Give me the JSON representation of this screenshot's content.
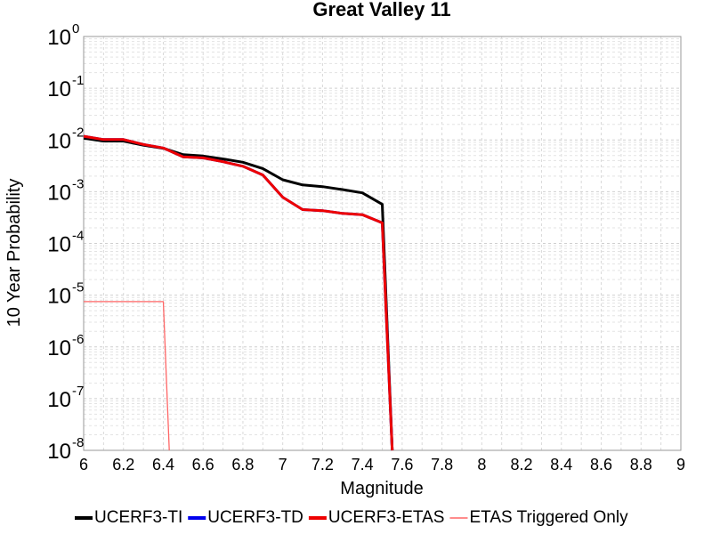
{
  "chart_data": {
    "type": "line",
    "title": "Great Valley 11",
    "xlabel": "Magnitude",
    "ylabel": "10 Year Probability",
    "xlim": [
      6,
      9
    ],
    "ylim": [
      1e-08,
      1
    ],
    "y_scale": "log",
    "grid": true,
    "legend_position": "bottom",
    "x_ticks": [
      "6",
      "6.2",
      "6.4",
      "6.6",
      "6.8",
      "7",
      "7.2",
      "7.4",
      "7.6",
      "7.8",
      "8",
      "8.2",
      "8.4",
      "8.6",
      "8.8",
      "9"
    ],
    "y_ticks": [
      {
        "base": "10",
        "exp": "0"
      },
      {
        "base": "10",
        "exp": "-1"
      },
      {
        "base": "10",
        "exp": "-2"
      },
      {
        "base": "10",
        "exp": "-3"
      },
      {
        "base": "10",
        "exp": "-4"
      },
      {
        "base": "10",
        "exp": "-5"
      },
      {
        "base": "10",
        "exp": "-6"
      },
      {
        "base": "10",
        "exp": "-7"
      },
      {
        "base": "10",
        "exp": "-8"
      }
    ],
    "series": [
      {
        "name": "UCERF3-TI",
        "color": "#000000",
        "x": [
          6.0,
          6.1,
          6.2,
          6.3,
          6.4,
          6.5,
          6.6,
          6.7,
          6.8,
          6.9,
          7.0,
          7.1,
          7.2,
          7.3,
          7.4,
          7.5,
          7.5,
          7.55
        ],
        "y": [
          0.0108,
          0.0095,
          0.0095,
          0.0079,
          0.0069,
          0.0052,
          0.0049,
          0.0043,
          0.0037,
          0.0028,
          0.0017,
          0.00135,
          0.00125,
          0.0011,
          0.00095,
          0.00057,
          0.00057,
          1e-08
        ]
      },
      {
        "name": "UCERF3-TD",
        "color": "#0000ee",
        "x": [
          6.0,
          6.1,
          6.2,
          6.3,
          6.4,
          6.5,
          6.6,
          6.7,
          6.8,
          6.9,
          7.0,
          7.1,
          7.2,
          7.3,
          7.4,
          7.5,
          7.55
        ],
        "y": [
          0.0118,
          0.0102,
          0.0102,
          0.0082,
          0.007,
          0.0047,
          0.0045,
          0.0038,
          0.0031,
          0.0021,
          0.00078,
          0.00045,
          0.00043,
          0.00038,
          0.00036,
          0.00025,
          1e-08
        ]
      },
      {
        "name": "UCERF3-ETAS",
        "color": "#ee0000",
        "x": [
          6.0,
          6.1,
          6.2,
          6.3,
          6.4,
          6.5,
          6.6,
          6.7,
          6.8,
          6.9,
          7.0,
          7.1,
          7.2,
          7.3,
          7.4,
          7.5,
          7.55
        ],
        "y": [
          0.0118,
          0.0102,
          0.0102,
          0.0082,
          0.007,
          0.0047,
          0.0045,
          0.0038,
          0.0031,
          0.0021,
          0.00078,
          0.00045,
          0.00043,
          0.00038,
          0.00036,
          0.00025,
          1e-08
        ]
      },
      {
        "name": "ETAS Triggered Only",
        "color": "#ff6666",
        "x": [
          6.0,
          6.4,
          6.43
        ],
        "y": [
          7.5e-06,
          7.5e-06,
          1e-08
        ]
      }
    ]
  }
}
